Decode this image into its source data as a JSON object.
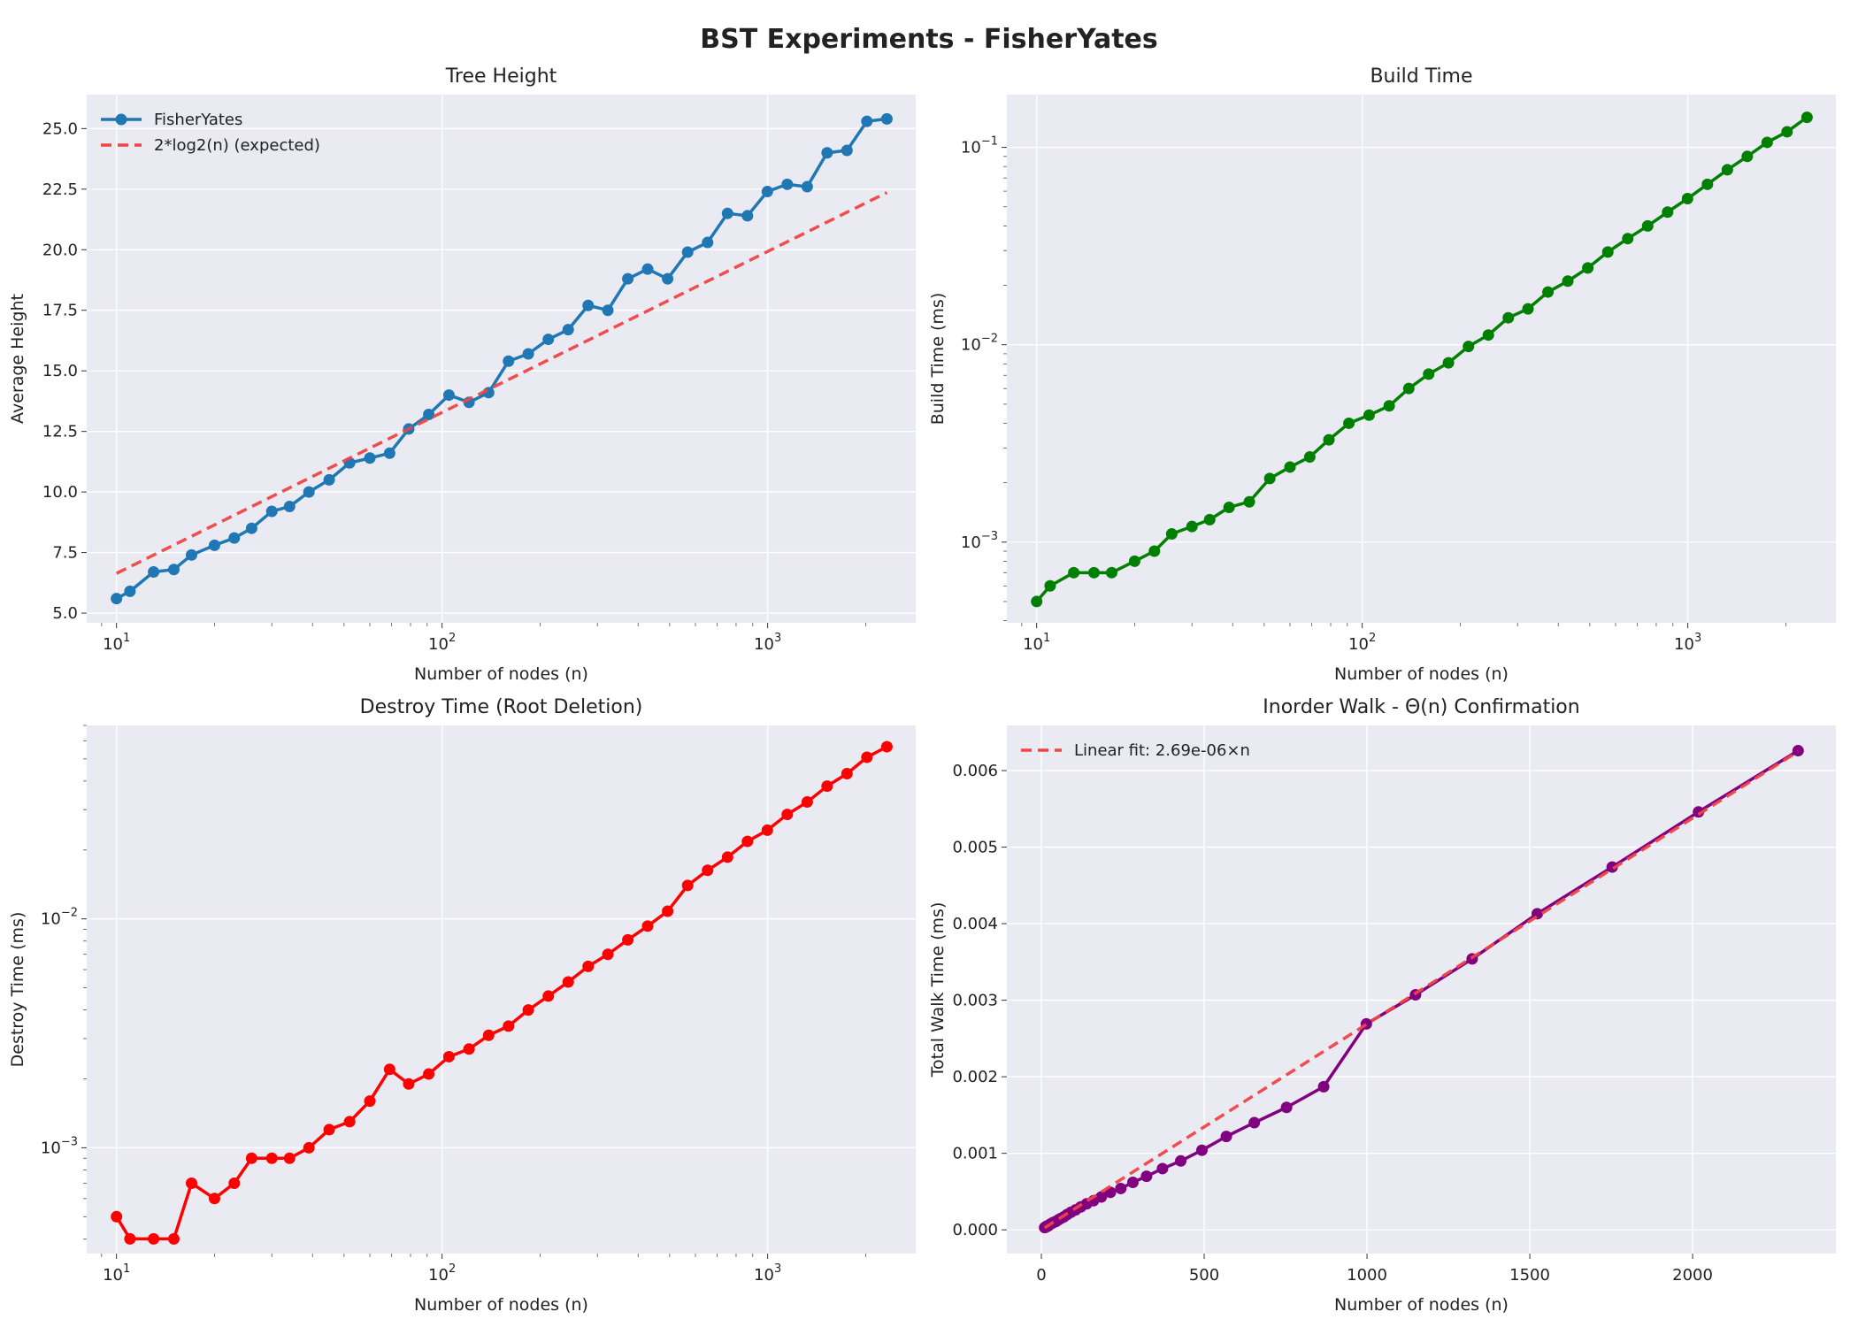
{
  "title": "BST Experiments - FisherYates",
  "chart_data": [
    {
      "id": "tree-height",
      "type": "line",
      "title": "Tree Height",
      "xlabel": "Number of nodes (n)",
      "ylabel": "Average Height",
      "xscale": "log",
      "yscale": "linear",
      "xlim": [
        8.1,
        2850
      ],
      "ylim": [
        4.6,
        26.4
      ],
      "xticks": [
        {
          "v": 10,
          "label": "10",
          "sup": "1"
        },
        {
          "v": 100,
          "label": "10",
          "sup": "2"
        },
        {
          "v": 1000,
          "label": "10",
          "sup": "3"
        }
      ],
      "yticks": [
        {
          "v": 5.0,
          "label": "5.0"
        },
        {
          "v": 7.5,
          "label": "7.5"
        },
        {
          "v": 10.0,
          "label": "10.0"
        },
        {
          "v": 12.5,
          "label": "12.5"
        },
        {
          "v": 15.0,
          "label": "15.0"
        },
        {
          "v": 17.5,
          "label": "17.5"
        },
        {
          "v": 20.0,
          "label": "20.0"
        },
        {
          "v": 22.5,
          "label": "22.5"
        },
        {
          "v": 25.0,
          "label": "25.0"
        }
      ],
      "grid": true,
      "legend": "top-left",
      "series": [
        {
          "name": "FisherYates",
          "color": "#1f77b4",
          "style": "solid-markers",
          "x": [
            10,
            11,
            13,
            15,
            17,
            20,
            23,
            26,
            30,
            34,
            39,
            45,
            52,
            60,
            69,
            79,
            91,
            105,
            121,
            139,
            160,
            184,
            212,
            244,
            281,
            323,
            372,
            428,
            493,
            568,
            654,
            753,
            867,
            998,
            1149,
            1323,
            1523,
            1753,
            2018,
            2324
          ],
          "y": [
            5.6,
            5.9,
            6.7,
            6.8,
            7.4,
            7.8,
            8.1,
            8.5,
            9.2,
            9.4,
            10.0,
            10.5,
            11.2,
            11.4,
            11.6,
            12.6,
            13.2,
            14.0,
            13.7,
            14.1,
            15.4,
            15.7,
            16.3,
            16.7,
            17.7,
            17.5,
            18.8,
            19.2,
            18.8,
            19.9,
            20.3,
            21.5,
            21.4,
            22.4,
            22.7,
            22.6,
            24.0,
            24.1,
            25.3,
            25.4
          ]
        },
        {
          "name": "2*log2(n) (expected)",
          "color": "#ef4444",
          "style": "dashed",
          "x": [
            10,
            2324
          ],
          "y": [
            6.64,
            22.36
          ]
        }
      ]
    },
    {
      "id": "build-time",
      "type": "line",
      "title": "Build Time",
      "xlabel": "Number of nodes (n)",
      "ylabel": "Build Time (ms)",
      "xscale": "log",
      "yscale": "log",
      "xlim": [
        8.1,
        2850
      ],
      "ylim": [
        0.00039,
        0.185
      ],
      "xticks": [
        {
          "v": 10,
          "label": "10",
          "sup": "1"
        },
        {
          "v": 100,
          "label": "10",
          "sup": "2"
        },
        {
          "v": 1000,
          "label": "10",
          "sup": "3"
        }
      ],
      "yticks": [
        {
          "v": 0.001,
          "label": "10",
          "sup": "−3"
        },
        {
          "v": 0.01,
          "label": "10",
          "sup": "−2"
        },
        {
          "v": 0.1,
          "label": "10",
          "sup": "−1"
        }
      ],
      "grid": true,
      "series": [
        {
          "name": "",
          "color": "#008000",
          "style": "solid-markers",
          "x": [
            10,
            11,
            13,
            15,
            17,
            20,
            23,
            26,
            30,
            34,
            39,
            45,
            52,
            60,
            69,
            79,
            91,
            105,
            121,
            139,
            160,
            184,
            212,
            244,
            281,
            323,
            372,
            428,
            493,
            568,
            654,
            753,
            867,
            998,
            1149,
            1323,
            1523,
            1753,
            2018,
            2324
          ],
          "y": [
            0.0005,
            0.0006,
            0.0007,
            0.0007,
            0.0007,
            0.0008,
            0.0009,
            0.0011,
            0.0012,
            0.0013,
            0.0015,
            0.0016,
            0.0021,
            0.0024,
            0.0027,
            0.0033,
            0.004,
            0.0044,
            0.0049,
            0.006,
            0.0071,
            0.0081,
            0.0098,
            0.0112,
            0.0137,
            0.0152,
            0.0185,
            0.021,
            0.0245,
            0.0295,
            0.0345,
            0.04,
            0.047,
            0.055,
            0.065,
            0.077,
            0.09,
            0.106,
            0.12,
            0.142
          ]
        }
      ]
    },
    {
      "id": "destroy-time",
      "type": "line",
      "title": "Destroy Time (Root Deletion)",
      "xlabel": "Number of nodes (n)",
      "ylabel": "Destroy Time (ms)",
      "xscale": "log",
      "yscale": "log",
      "xlim": [
        8.1,
        2850
      ],
      "ylim": [
        0.000345,
        0.07
      ],
      "xticks": [
        {
          "v": 10,
          "label": "10",
          "sup": "1"
        },
        {
          "v": 100,
          "label": "10",
          "sup": "2"
        },
        {
          "v": 1000,
          "label": "10",
          "sup": "3"
        }
      ],
      "yticks": [
        {
          "v": 0.001,
          "label": "10",
          "sup": "−3"
        },
        {
          "v": 0.01,
          "label": "10",
          "sup": "−2"
        }
      ],
      "grid": true,
      "series": [
        {
          "name": "",
          "color": "#ff0000",
          "style": "solid-markers",
          "x": [
            10,
            11,
            13,
            15,
            17,
            20,
            23,
            26,
            30,
            34,
            39,
            45,
            52,
            60,
            69,
            79,
            91,
            105,
            121,
            139,
            160,
            184,
            212,
            244,
            281,
            323,
            372,
            428,
            493,
            568,
            654,
            753,
            867,
            998,
            1149,
            1323,
            1523,
            1753,
            2018,
            2324
          ],
          "y": [
            0.0005,
            0.0004,
            0.0004,
            0.0004,
            0.0007,
            0.0006,
            0.0007,
            0.0009,
            0.0009,
            0.0009,
            0.001,
            0.0012,
            0.0013,
            0.0016,
            0.0022,
            0.0019,
            0.0021,
            0.0025,
            0.0027,
            0.0031,
            0.0034,
            0.004,
            0.0046,
            0.0053,
            0.0062,
            0.007,
            0.0081,
            0.0093,
            0.0108,
            0.014,
            0.0163,
            0.0186,
            0.0218,
            0.0244,
            0.0286,
            0.0324,
            0.038,
            0.0431,
            0.0508,
            0.0565
          ]
        }
      ]
    },
    {
      "id": "inorder-walk",
      "type": "line",
      "title": "Inorder Walk - Θ(n) Confirmation",
      "xlabel": "Number of nodes (n)",
      "ylabel": "Total Walk Time (ms)",
      "xscale": "linear",
      "yscale": "linear",
      "xlim": [
        -106,
        2440
      ],
      "ylim": [
        -0.00031,
        0.00659
      ],
      "xticks": [
        {
          "v": 0,
          "label": "0"
        },
        {
          "v": 500,
          "label": "500"
        },
        {
          "v": 1000,
          "label": "1000"
        },
        {
          "v": 1500,
          "label": "1500"
        },
        {
          "v": 2000,
          "label": "2000"
        }
      ],
      "yticks": [
        {
          "v": 0.0,
          "label": "0.000"
        },
        {
          "v": 0.001,
          "label": "0.001"
        },
        {
          "v": 0.002,
          "label": "0.002"
        },
        {
          "v": 0.003,
          "label": "0.003"
        },
        {
          "v": 0.004,
          "label": "0.004"
        },
        {
          "v": 0.005,
          "label": "0.005"
        },
        {
          "v": 0.006,
          "label": "0.006"
        }
      ],
      "grid": true,
      "legend": "top-left",
      "series": [
        {
          "name": "",
          "color": "#800080",
          "style": "solid-markers",
          "x": [
            10,
            11,
            13,
            15,
            17,
            20,
            23,
            26,
            30,
            34,
            39,
            45,
            52,
            60,
            69,
            79,
            91,
            105,
            121,
            139,
            160,
            184,
            212,
            244,
            281,
            323,
            372,
            428,
            493,
            568,
            654,
            753,
            867,
            998,
            1149,
            1323,
            1523,
            1753,
            2018,
            2324
          ],
          "y": [
            3e-05,
            3e-05,
            4e-05,
            4e-05,
            5e-05,
            5e-05,
            6e-05,
            7e-05,
            8e-05,
            9e-05,
            0.0001,
            0.00011,
            0.00013,
            0.00015,
            0.00017,
            0.0002,
            0.00023,
            0.00026,
            0.0003,
            0.00034,
            0.00038,
            0.00043,
            0.00049,
            0.00054,
            0.00062,
            0.0007,
            0.0008,
            0.0009,
            0.00104,
            0.00122,
            0.0014,
            0.0016,
            0.00187,
            0.00269,
            0.00307,
            0.00354,
            0.00413,
            0.00474,
            0.00546,
            0.00626
          ]
        },
        {
          "name": "Linear fit: 2.69e-06×n",
          "color": "#ef4444",
          "style": "dashed",
          "x": [
            10,
            2324
          ],
          "y": [
            2.69e-05,
            0.00625
          ]
        }
      ]
    }
  ]
}
